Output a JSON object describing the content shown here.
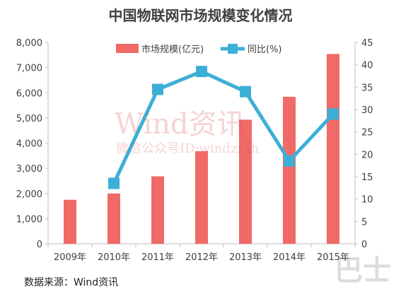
{
  "chart_data": {
    "type": "bar",
    "title": "中国物联网市场规模变化情况",
    "categories": [
      "2009年",
      "2010年",
      "2011年",
      "2012年",
      "2013年",
      "2014年",
      "2015年"
    ],
    "series": [
      {
        "name": "市场规模(亿元)",
        "type": "bar",
        "axis": "left",
        "values": [
          1750,
          2000,
          2680,
          3680,
          4930,
          5840,
          7540
        ],
        "color": "#F06A67"
      },
      {
        "name": "同比(%)",
        "type": "line",
        "axis": "right",
        "values": [
          null,
          13.5,
          34.5,
          38.5,
          34.0,
          18.5,
          29.0
        ],
        "color": "#3CAFD6"
      }
    ],
    "ylim_left": [
      0,
      8000
    ],
    "ylim_right": [
      0,
      45
    ],
    "yticks_left": [
      "0",
      "1,000",
      "2,000",
      "3,000",
      "4,000",
      "5,000",
      "6,000",
      "7,000",
      "8,000"
    ],
    "yticks_right": [
      "0",
      "5",
      "10",
      "15",
      "20",
      "25",
      "30",
      "35",
      "40",
      "45"
    ],
    "legend_position": "top",
    "grid": false
  },
  "source_note": "数据来源：Wind资讯",
  "watermark": {
    "main": "Wind资讯",
    "sub": "微信公众号ID:windzxsh"
  }
}
